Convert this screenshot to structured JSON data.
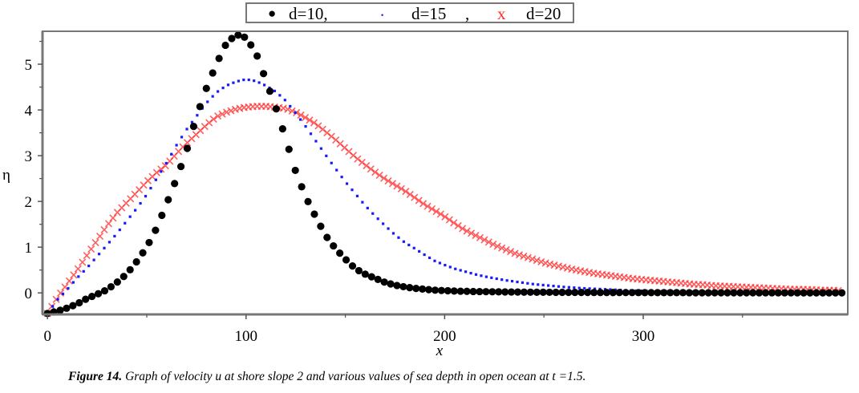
{
  "chart_data": {
    "type": "scatter",
    "title": "",
    "xlabel": "x",
    "ylabel": "η",
    "xlim": [
      -2.5,
      403
    ],
    "ylim": [
      -0.47,
      5.72
    ],
    "xticks": [
      0,
      100,
      200,
      300
    ],
    "xminor": [
      50,
      150,
      250,
      350
    ],
    "yticks": [
      0,
      1,
      2,
      3,
      4,
      5
    ],
    "grid": false,
    "legend_position": "top-center-outside",
    "x": [
      0,
      5,
      10,
      15,
      20,
      25,
      30,
      35,
      40,
      45,
      50,
      55,
      60,
      65,
      70,
      75,
      80,
      85,
      90,
      95,
      100,
      105,
      110,
      115,
      120,
      125,
      130,
      135,
      140,
      145,
      150,
      155,
      160,
      165,
      170,
      175,
      180,
      185,
      190,
      195,
      200,
      205,
      210,
      215,
      220,
      225,
      230,
      235,
      240,
      245,
      250,
      255,
      260,
      265,
      270,
      275,
      280,
      285,
      290,
      295,
      300,
      305,
      310,
      315,
      320,
      325,
      330,
      335,
      340,
      345,
      350,
      355,
      360,
      365,
      370,
      375,
      380,
      385,
      390,
      395,
      400
    ],
    "series": [
      {
        "name": "d=10,",
        "marker": "dot",
        "color": "#000000",
        "values": [
          -0.45,
          -0.4,
          -0.33,
          -0.24,
          -0.12,
          -0.03,
          0.07,
          0.23,
          0.42,
          0.69,
          1.0,
          1.42,
          1.95,
          2.5,
          3.1,
          3.85,
          4.47,
          5.0,
          5.45,
          5.65,
          5.58,
          5.25,
          4.65,
          4.05,
          3.37,
          2.65,
          2.1,
          1.67,
          1.26,
          0.97,
          0.74,
          0.53,
          0.41,
          0.32,
          0.23,
          0.17,
          0.13,
          0.1,
          0.08,
          0.06,
          0.05,
          0.04,
          0.035,
          0.03,
          0.027,
          0.024,
          0.021,
          0.019,
          0.017,
          0.015,
          0.014,
          0.013,
          0.012,
          0.011,
          0.01,
          0.009,
          0.008,
          0.008,
          0.007,
          0.007,
          0.006,
          0.006,
          0.005,
          0.005,
          0.005,
          0.004,
          0.004,
          0.004,
          0.003,
          0.003,
          0.003,
          0.003,
          0.002,
          0.002,
          0.002,
          0.002,
          0.002,
          0.001,
          0.001,
          0.001,
          0.001
        ]
      },
      {
        "name": "d=15 ,",
        "marker": "point",
        "color": "#1a1aff",
        "values": [
          -0.45,
          -0.15,
          0.08,
          0.33,
          0.55,
          0.8,
          1.05,
          1.3,
          1.58,
          1.85,
          2.15,
          2.5,
          2.85,
          3.23,
          3.57,
          3.86,
          4.15,
          4.38,
          4.53,
          4.62,
          4.67,
          4.63,
          4.53,
          4.4,
          4.2,
          3.93,
          3.64,
          3.33,
          3.02,
          2.72,
          2.43,
          2.17,
          1.91,
          1.68,
          1.47,
          1.27,
          1.1,
          0.97,
          0.83,
          0.7,
          0.61,
          0.53,
          0.47,
          0.41,
          0.36,
          0.32,
          0.28,
          0.25,
          0.22,
          0.19,
          0.17,
          0.15,
          0.13,
          0.115,
          0.1,
          0.09,
          0.08,
          0.07,
          0.06,
          0.05,
          0.045,
          0.04,
          0.035,
          0.03,
          0.027,
          0.024,
          0.021,
          0.019,
          0.017,
          0.015,
          0.013,
          0.012,
          0.011,
          0.01,
          0.009,
          0.008,
          0.007,
          0.006,
          0.006,
          0.005,
          0.005
        ]
      },
      {
        "name": "d=20",
        "marker": "x",
        "color": "#ff2a2a",
        "values": [
          -0.45,
          -0.1,
          0.2,
          0.5,
          0.83,
          1.15,
          1.47,
          1.75,
          1.98,
          2.2,
          2.43,
          2.63,
          2.8,
          3.05,
          3.27,
          3.47,
          3.67,
          3.85,
          3.95,
          4.02,
          4.06,
          4.08,
          4.08,
          4.06,
          4.03,
          3.95,
          3.83,
          3.7,
          3.53,
          3.35,
          3.16,
          2.97,
          2.8,
          2.64,
          2.49,
          2.36,
          2.23,
          2.08,
          1.93,
          1.8,
          1.67,
          1.52,
          1.38,
          1.27,
          1.16,
          1.05,
          0.96,
          0.87,
          0.8,
          0.73,
          0.66,
          0.61,
          0.56,
          0.51,
          0.47,
          0.43,
          0.4,
          0.37,
          0.34,
          0.31,
          0.29,
          0.27,
          0.25,
          0.23,
          0.21,
          0.19,
          0.18,
          0.16,
          0.15,
          0.14,
          0.13,
          0.12,
          0.11,
          0.1,
          0.09,
          0.08,
          0.08,
          0.07,
          0.06,
          0.06,
          0.05
        ]
      }
    ],
    "legend": {
      "marker_1": "●",
      "label_1": "d=10,",
      "marker_2": ".",
      "label_2": "d=15",
      "sep_2": ",",
      "marker_3": "x",
      "label_3": "d=20"
    },
    "caption_bold": "Figure 14.",
    "caption_text": " Graph of velocity u at shore slope 2 and various values of sea depth in open ocean at t =1.5."
  }
}
